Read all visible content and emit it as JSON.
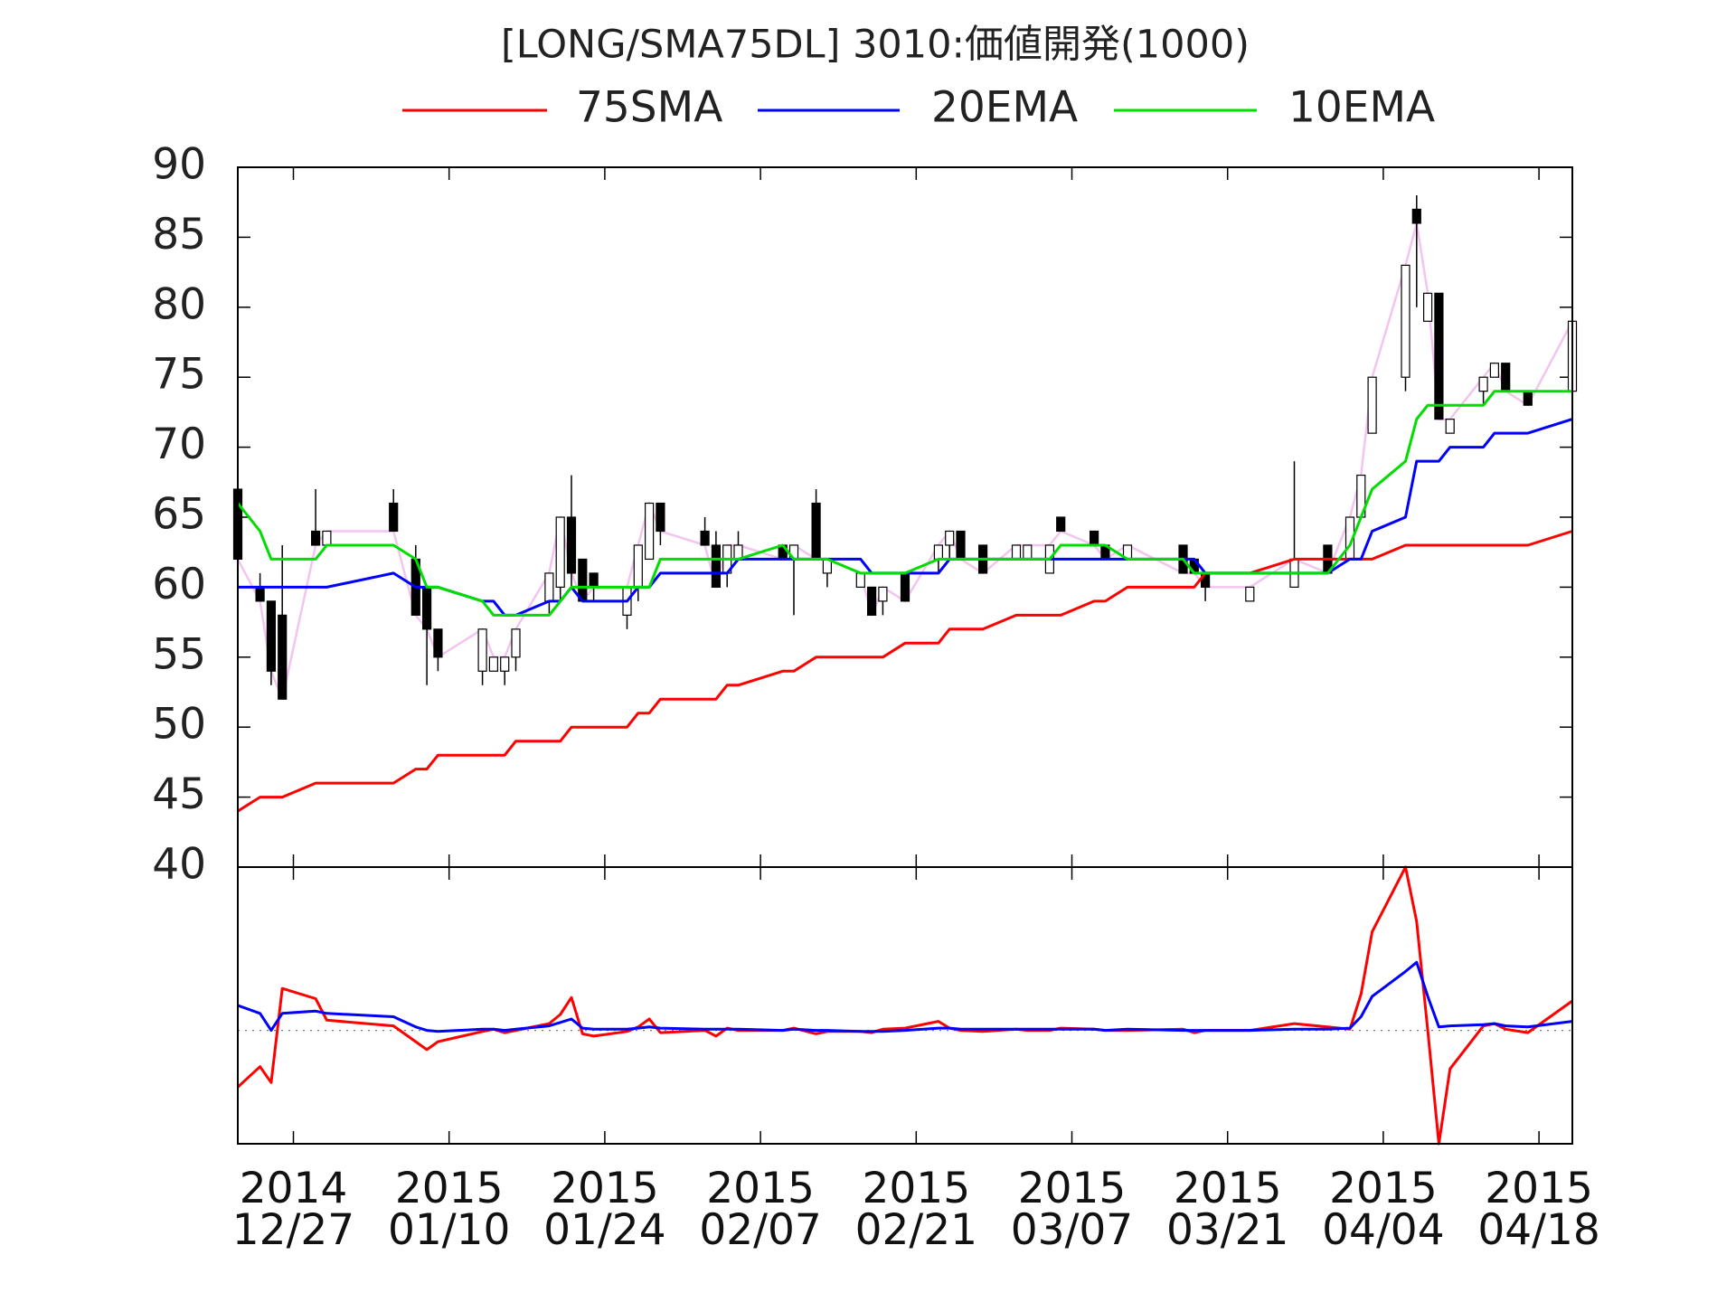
{
  "chart_data": {
    "type": "candlestick",
    "title": "[LONG/SMA75DL] 3010:価値開発(1000)",
    "x": [
      "2014-12-22",
      "2014-12-24",
      "2014-12-25",
      "2014-12-26",
      "2014-12-29",
      "2014-12-30",
      "2015-01-05",
      "2015-01-07",
      "2015-01-08",
      "2015-01-09",
      "2015-01-13",
      "2015-01-14",
      "2015-01-15",
      "2015-01-16",
      "2015-01-19",
      "2015-01-20",
      "2015-01-21",
      "2015-01-22",
      "2015-01-23",
      "2015-01-26",
      "2015-01-27",
      "2015-01-28",
      "2015-01-29",
      "2015-02-02",
      "2015-02-03",
      "2015-02-04",
      "2015-02-05",
      "2015-02-09",
      "2015-02-10",
      "2015-02-12",
      "2015-02-13",
      "2015-02-16",
      "2015-02-17",
      "2015-02-18",
      "2015-02-20",
      "2015-02-23",
      "2015-02-24",
      "2015-02-25",
      "2015-02-27",
      "2015-03-02",
      "2015-03-03",
      "2015-03-05",
      "2015-03-06",
      "2015-03-09",
      "2015-03-10",
      "2015-03-12",
      "2015-03-17",
      "2015-03-18",
      "2015-03-19",
      "2015-03-23",
      "2015-03-27",
      "2015-03-30",
      "2015-04-01",
      "2015-04-02",
      "2015-04-03",
      "2015-04-06",
      "2015-04-07",
      "2015-04-08",
      "2015-04-09",
      "2015-04-10",
      "2015-04-13",
      "2015-04-14",
      "2015-04-15",
      "2015-04-17",
      "2015-04-21"
    ],
    "open": [
      67,
      60,
      59,
      58,
      64,
      63,
      66,
      62,
      60,
      57,
      54,
      54,
      54,
      55,
      59,
      60,
      65,
      62,
      61,
      58,
      60,
      62,
      66,
      64,
      63,
      61,
      62,
      63,
      62,
      66,
      61,
      60,
      60,
      59,
      61,
      62,
      63,
      64,
      63,
      62,
      62,
      61,
      65,
      64,
      63,
      62,
      63,
      62,
      61,
      59,
      60,
      63,
      62,
      65,
      71,
      75,
      87,
      79,
      81,
      71,
      74,
      75,
      76,
      74,
      74
    ],
    "high": [
      68,
      61,
      59,
      63,
      67,
      64,
      67,
      63,
      60,
      57,
      57,
      55,
      55,
      57,
      61,
      65,
      68,
      62,
      61,
      60,
      63,
      66,
      66,
      65,
      64,
      63,
      64,
      63,
      63,
      67,
      62,
      61,
      60,
      60,
      61,
      63,
      64,
      64,
      63,
      63,
      63,
      63,
      65,
      64,
      63,
      63,
      63,
      62,
      61,
      60,
      69,
      63,
      65,
      68,
      75,
      83,
      88,
      81,
      81,
      72,
      75,
      76,
      76,
      74,
      79
    ],
    "low": [
      62,
      59,
      53,
      52,
      63,
      63,
      64,
      58,
      53,
      54,
      53,
      54,
      53,
      54,
      58,
      59,
      60,
      59,
      59,
      57,
      59,
      62,
      63,
      63,
      60,
      60,
      62,
      62,
      58,
      62,
      60,
      60,
      58,
      58,
      59,
      61,
      62,
      62,
      61,
      62,
      62,
      61,
      64,
      63,
      62,
      62,
      61,
      61,
      59,
      59,
      60,
      61,
      62,
      65,
      71,
      74,
      80,
      79,
      72,
      71,
      73,
      75,
      74,
      73,
      72
    ],
    "close": [
      62,
      59,
      54,
      52,
      63,
      64,
      64,
      58,
      57,
      55,
      57,
      55,
      55,
      57,
      61,
      65,
      61,
      59,
      60,
      60,
      63,
      66,
      64,
      63,
      60,
      63,
      63,
      62,
      63,
      62,
      62,
      61,
      58,
      60,
      59,
      63,
      64,
      62,
      61,
      63,
      63,
      63,
      64,
      63,
      62,
      63,
      61,
      61,
      60,
      60,
      62,
      61,
      65,
      68,
      75,
      83,
      86,
      81,
      72,
      72,
      75,
      76,
      74,
      73,
      79
    ],
    "up_color": "#ffffff",
    "down_color": "#000000",
    "close_line_color": "#f4c4f0",
    "series": [
      {
        "name": "75SMA",
        "color": "#ff0000",
        "values": [
          44,
          45,
          45,
          45,
          46,
          46,
          46,
          47,
          47,
          48,
          48,
          48,
          48,
          49,
          49,
          49,
          50,
          50,
          50,
          50,
          51,
          51,
          52,
          52,
          52,
          53,
          53,
          54,
          54,
          55,
          55,
          55,
          55,
          55,
          56,
          56,
          57,
          57,
          57,
          58,
          58,
          58,
          58,
          59,
          59,
          60,
          60,
          60,
          61,
          61,
          62,
          62,
          62,
          62,
          62,
          63,
          63,
          63,
          63,
          63,
          63,
          63,
          63,
          63,
          64
        ]
      },
      {
        "name": "20EMA",
        "color": "#0000ff",
        "values": [
          60,
          60,
          60,
          60,
          60,
          60,
          61,
          60,
          60,
          60,
          59,
          59,
          58,
          58,
          59,
          59,
          60,
          59,
          59,
          59,
          60,
          60,
          61,
          61,
          61,
          61,
          62,
          62,
          62,
          62,
          62,
          62,
          61,
          61,
          61,
          61,
          62,
          62,
          62,
          62,
          62,
          62,
          62,
          62,
          62,
          62,
          62,
          62,
          61,
          61,
          61,
          61,
          62,
          62,
          64,
          65,
          69,
          69,
          69,
          70,
          70,
          71,
          71,
          71,
          72
        ]
      },
      {
        "name": "10EMA",
        "color": "#00dd00",
        "values": [
          66,
          64,
          62,
          62,
          62,
          63,
          63,
          62,
          60,
          60,
          59,
          58,
          58,
          58,
          58,
          59,
          60,
          60,
          60,
          60,
          60,
          60,
          62,
          62,
          62,
          62,
          62,
          63,
          62,
          62,
          62,
          61,
          61,
          61,
          61,
          62,
          62,
          62,
          62,
          62,
          62,
          62,
          63,
          63,
          63,
          62,
          62,
          61,
          61,
          61,
          61,
          61,
          63,
          65,
          67,
          69,
          72,
          73,
          73,
          73,
          73,
          74,
          74,
          74,
          74
        ]
      }
    ],
    "xlim": [
      "2014-12-22",
      "2015-04-21"
    ],
    "xticks": [
      {
        "value": "2014-12-27",
        "label": "2014\n12/27"
      },
      {
        "value": "2015-01-10",
        "label": "2015\n01/10"
      },
      {
        "value": "2015-01-24",
        "label": "2015\n01/24"
      },
      {
        "value": "2015-02-07",
        "label": "2015\n02/07"
      },
      {
        "value": "2015-02-21",
        "label": "2015\n02/21"
      },
      {
        "value": "2015-03-07",
        "label": "2015\n03/07"
      },
      {
        "value": "2015-03-21",
        "label": "2015\n03/21"
      },
      {
        "value": "2015-04-04",
        "label": "2015\n04/04"
      },
      {
        "value": "2015-04-18",
        "label": "2015\n04/18"
      }
    ],
    "ylim": [
      40,
      90
    ],
    "yticks": [
      40,
      45,
      50,
      55,
      60,
      65,
      70,
      75,
      80,
      85,
      90
    ],
    "oscillator": {
      "ylim": [
        -10,
        14.4
      ],
      "zero_line": true,
      "series": [
        {
          "color": "#ff0000",
          "values": [
            -5,
            -3.2,
            -4.6,
            3.7,
            2.8,
            0.9,
            0.4,
            -1,
            -1.7,
            -1,
            -0.1,
            0.1,
            -0.2,
            0,
            0.6,
            1.4,
            2.9,
            -0.3,
            -0.5,
            -0.1,
            0.3,
            1,
            -0.2,
            0,
            -0.5,
            0.2,
            0,
            0,
            0.2,
            -0.3,
            -0.1,
            -0.1,
            -0.2,
            0.1,
            0.2,
            0.8,
            0.2,
            0,
            -0.1,
            0.1,
            0,
            0,
            0.2,
            0.1,
            0,
            0,
            0.1,
            -0.2,
            0,
            0,
            0.6,
            0.3,
            0.1,
            3.2,
            8.7,
            14.4,
            9.6,
            0,
            -10,
            -3.4,
            0.4,
            0.6,
            0.1,
            -0.2,
            2.6
          ]
        },
        {
          "color": "#0000ff",
          "values": [
            2.2,
            1.5,
            0,
            1.5,
            1.7,
            1.5,
            1.2,
            0.3,
            0,
            -0.1,
            0.1,
            0.1,
            0,
            0.1,
            0.4,
            0.7,
            1,
            0.2,
            0.1,
            0.1,
            0.2,
            0.3,
            0.2,
            0.1,
            0.1,
            0.1,
            0.1,
            0,
            0.1,
            0,
            0,
            -0.1,
            -0.1,
            -0.1,
            0,
            0.2,
            0.2,
            0.1,
            0.1,
            0.1,
            0.1,
            0.1,
            0.1,
            0.1,
            0,
            0.1,
            0,
            0,
            0,
            0,
            0.1,
            0.1,
            0.2,
            1.2,
            3,
            5.2,
            6,
            3,
            0.3,
            0.4,
            0.5,
            0.6,
            0.4,
            0.3,
            0.8
          ]
        }
      ]
    }
  }
}
